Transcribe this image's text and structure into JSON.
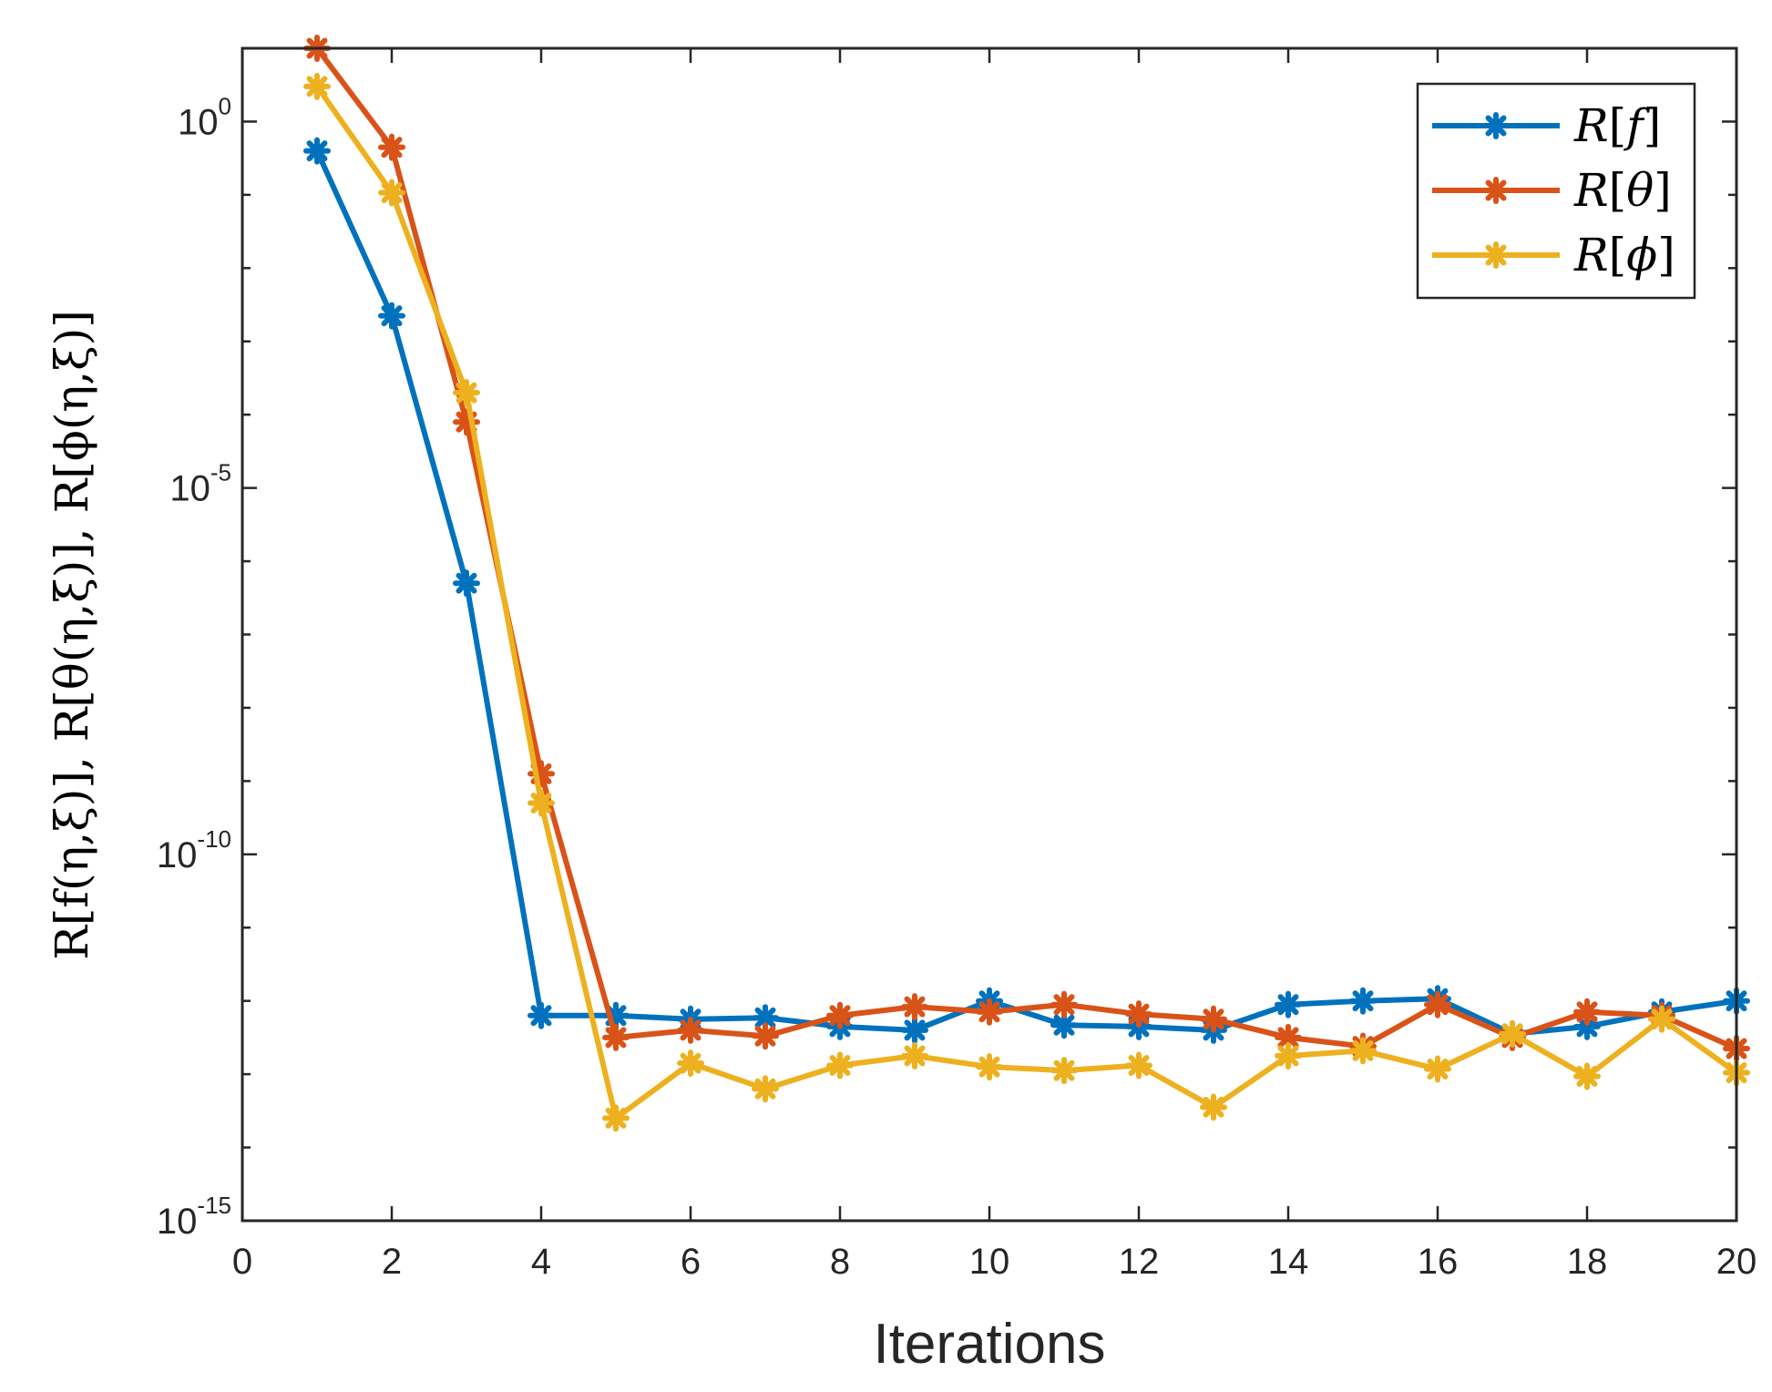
{
  "chart_data": {
    "type": "line",
    "title": "",
    "xlabel": "Iterations",
    "ylabel": "R[f(η,ξ)], R[θ(η,ξ)], R[ϕ(η,ξ)]",
    "xlim": [
      0,
      20
    ],
    "ylim_exponent": [
      -15,
      1
    ],
    "y_scale": "log",
    "x_ticks": [
      0,
      2,
      4,
      6,
      8,
      10,
      12,
      14,
      16,
      18,
      20
    ],
    "y_ticks": [
      {
        "base": "10",
        "exp": "0",
        "value_exp": 0
      },
      {
        "base": "10",
        "exp": "-5",
        "value_exp": -5
      },
      {
        "base": "10",
        "exp": "-10",
        "value_exp": -10
      },
      {
        "base": "10",
        "exp": "-15",
        "value_exp": -15
      }
    ],
    "legend_position": "top-right",
    "x": [
      1,
      2,
      3,
      4,
      5,
      6,
      7,
      8,
      9,
      10,
      11,
      12,
      13,
      14,
      15,
      16,
      17,
      18,
      19,
      20
    ],
    "series": [
      {
        "name": "R[f]",
        "name_parts": [
          "R",
          "[",
          "f",
          "]"
        ],
        "color": "#0072BD",
        "log10_values": [
          -0.4,
          -2.65,
          -6.3,
          -12.2,
          -12.2,
          -12.25,
          -12.23,
          -12.35,
          -12.4,
          -12.0,
          -12.33,
          -12.35,
          -12.4,
          -12.05,
          -12.0,
          -11.97,
          -12.45,
          -12.35,
          -12.15,
          -12.0
        ]
      },
      {
        "name": "R[θ]",
        "name_parts": [
          "R",
          "[",
          "θ",
          "]"
        ],
        "color": "#D95319",
        "log10_values": [
          1.0,
          -0.35,
          -4.1,
          -8.9,
          -12.5,
          -12.4,
          -12.48,
          -12.2,
          -12.08,
          -12.15,
          -12.05,
          -12.18,
          -12.25,
          -12.5,
          -12.62,
          -12.05,
          -12.5,
          -12.15,
          -12.2,
          -12.65
        ]
      },
      {
        "name": "R[ϕ]",
        "name_parts": [
          "R",
          "[",
          "ϕ",
          "]"
        ],
        "color": "#EDB120",
        "log10_values": [
          0.48,
          -0.97,
          -3.7,
          -9.3,
          -13.6,
          -12.85,
          -13.2,
          -12.88,
          -12.75,
          -12.9,
          -12.95,
          -12.88,
          -13.45,
          -12.75,
          -12.68,
          -12.93,
          -12.45,
          -13.03,
          -12.25,
          -12.98
        ]
      }
    ]
  }
}
